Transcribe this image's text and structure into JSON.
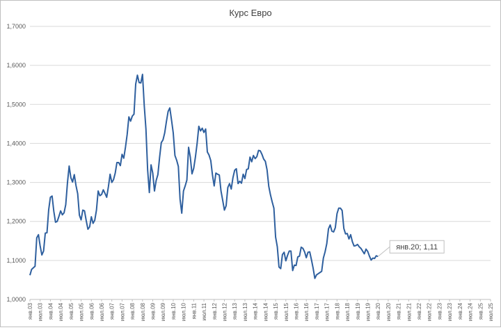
{
  "chart_data": {
    "type": "line",
    "title": "Курс Евро",
    "xlabel": "",
    "ylabel": "",
    "ylim": [
      1.0,
      1.7
    ],
    "yticks": [
      "1,0000",
      "1,1000",
      "1,2000",
      "1,3000",
      "1,4000",
      "1,5000",
      "1,6000",
      "1,7000"
    ],
    "grid": "horizontal",
    "legend": "none",
    "x_tick_labels": [
      "янв.03",
      "июл.03",
      "янв.04",
      "июл.04",
      "янв.05",
      "июл.05",
      "янв.06",
      "июл.06",
      "янв.07",
      "июл.07",
      "янв.08",
      "июл.08",
      "янв.09",
      "июл.09",
      "янв.10",
      "июл.10",
      "янв.11",
      "июл.11",
      "янв.12",
      "июл.12",
      "янв.13",
      "июл.13",
      "янв.14",
      "июл.14",
      "янв.15",
      "июл.15",
      "янв.16",
      "июл.16",
      "янв.17",
      "июл.17",
      "янв.18",
      "июл.18",
      "янв.19",
      "июл.19",
      "янв.20",
      "июл.20",
      "янв.21",
      "июл.21",
      "янв.22",
      "июл.22",
      "янв.23",
      "июл.23",
      "янв.24",
      "июл.24",
      "янв.25",
      "июл.25"
    ],
    "x_start": "2003-01",
    "annotation": {
      "x": "2020-01",
      "text": "янв.20; 1,11"
    },
    "line_color": "#2e5f9e",
    "series": [
      {
        "values": [
          1.062,
          1.077,
          1.081,
          1.085,
          1.158,
          1.166,
          1.137,
          1.114,
          1.124,
          1.17,
          1.171,
          1.23,
          1.262,
          1.265,
          1.226,
          1.198,
          1.2,
          1.213,
          1.227,
          1.217,
          1.222,
          1.243,
          1.299,
          1.342,
          1.312,
          1.301,
          1.32,
          1.292,
          1.271,
          1.216,
          1.204,
          1.229,
          1.227,
          1.202,
          1.18,
          1.186,
          1.212,
          1.195,
          1.203,
          1.229,
          1.278,
          1.266,
          1.269,
          1.281,
          1.272,
          1.262,
          1.289,
          1.321,
          1.3,
          1.307,
          1.324,
          1.351,
          1.351,
          1.343,
          1.372,
          1.362,
          1.39,
          1.423,
          1.468,
          1.457,
          1.47,
          1.475,
          1.552,
          1.575,
          1.556,
          1.555,
          1.577,
          1.498,
          1.437,
          1.332,
          1.274,
          1.345,
          1.324,
          1.278,
          1.305,
          1.32,
          1.364,
          1.402,
          1.409,
          1.427,
          1.456,
          1.482,
          1.491,
          1.46,
          1.427,
          1.369,
          1.357,
          1.341,
          1.257,
          1.221,
          1.278,
          1.291,
          1.306,
          1.39,
          1.365,
          1.322,
          1.336,
          1.365,
          1.4,
          1.444,
          1.432,
          1.439,
          1.428,
          1.437,
          1.378,
          1.37,
          1.356,
          1.319,
          1.291,
          1.324,
          1.321,
          1.319,
          1.278,
          1.254,
          1.229,
          1.24,
          1.287,
          1.297,
          1.283,
          1.312,
          1.331,
          1.335,
          1.297,
          1.303,
          1.298,
          1.321,
          1.31,
          1.333,
          1.335,
          1.365,
          1.353,
          1.369,
          1.361,
          1.366,
          1.382,
          1.381,
          1.372,
          1.36,
          1.354,
          1.332,
          1.29,
          1.268,
          1.25,
          1.234,
          1.16,
          1.135,
          1.083,
          1.079,
          1.115,
          1.121,
          1.099,
          1.113,
          1.124,
          1.124,
          1.074,
          1.088,
          1.087,
          1.109,
          1.111,
          1.134,
          1.131,
          1.122,
          1.107,
          1.121,
          1.122,
          1.102,
          1.08,
          1.054,
          1.063,
          1.066,
          1.069,
          1.072,
          1.106,
          1.122,
          1.143,
          1.181,
          1.191,
          1.175,
          1.173,
          1.184,
          1.22,
          1.234,
          1.234,
          1.228,
          1.182,
          1.168,
          1.169,
          1.155,
          1.166,
          1.148,
          1.137,
          1.138,
          1.141,
          1.135,
          1.131,
          1.124,
          1.117,
          1.129,
          1.123,
          1.111,
          1.101,
          1.106,
          1.105,
          1.112,
          1.11
        ]
      }
    ]
  }
}
